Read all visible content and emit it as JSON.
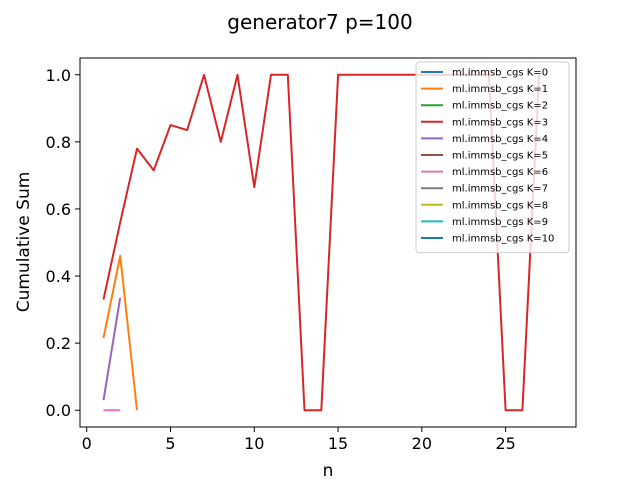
{
  "chart_data": {
    "type": "line",
    "title": "generator7 p=100",
    "xlabel": "n",
    "ylabel": "Cumulative Sum",
    "xlim": [
      -0.4,
      29.2
    ],
    "ylim": [
      -0.05,
      1.05
    ],
    "xticks": [
      0,
      5,
      10,
      15,
      20,
      25
    ],
    "yticks": [
      0.0,
      0.2,
      0.4,
      0.6,
      0.8,
      1.0
    ],
    "xtick_labels": [
      "0",
      "5",
      "10",
      "15",
      "20",
      "25"
    ],
    "ytick_labels": [
      "0.0",
      "0.2",
      "0.4",
      "0.6",
      "0.8",
      "1.0"
    ],
    "grid": false,
    "legend_position": "top-right",
    "series": [
      {
        "name": "ml.immsb_cgs K=0",
        "color": "#1f77b4",
        "x": [],
        "y": []
      },
      {
        "name": "ml.immsb_cgs K=1",
        "color": "#ff7f0e",
        "x": [
          1,
          2,
          3
        ],
        "y": [
          0.215,
          0.46,
          0.0
        ]
      },
      {
        "name": "ml.immsb_cgs K=2",
        "color": "#2ca02c",
        "x": [],
        "y": []
      },
      {
        "name": "ml.immsb_cgs K=3",
        "color": "#d62728",
        "x": [
          1,
          2,
          3,
          4,
          5,
          6,
          7,
          8,
          9,
          10,
          11,
          12,
          13,
          14,
          15,
          16,
          17,
          18,
          19,
          20,
          21,
          22,
          23,
          24,
          25,
          26,
          27
        ],
        "y": [
          0.33,
          0.56,
          0.78,
          0.715,
          0.85,
          0.835,
          1.0,
          0.8,
          1.0,
          0.665,
          1.0,
          1.0,
          0.0,
          0.0,
          1.0,
          1.0,
          1.0,
          1.0,
          1.0,
          1.0,
          1.0,
          1.0,
          1.0,
          1.0,
          0.0,
          0.0,
          1.0
        ]
      },
      {
        "name": "ml.immsb_cgs K=4",
        "color": "#9467bd",
        "x": [
          1,
          2
        ],
        "y": [
          0.03,
          0.335
        ]
      },
      {
        "name": "ml.immsb_cgs K=5",
        "color": "#8c564b",
        "x": [],
        "y": []
      },
      {
        "name": "ml.immsb_cgs K=6",
        "color": "#e377c2",
        "x": [
          1,
          2
        ],
        "y": [
          0.0,
          0.0
        ]
      },
      {
        "name": "ml.immsb_cgs K=7",
        "color": "#7f7f7f",
        "x": [],
        "y": []
      },
      {
        "name": "ml.immsb_cgs K=8",
        "color": "#bcbd22",
        "x": [],
        "y": []
      },
      {
        "name": "ml.immsb_cgs K=9",
        "color": "#17becf",
        "x": [],
        "y": []
      },
      {
        "name": "ml.immsb_cgs K=10",
        "color": "#1f77b4",
        "x": [],
        "y": []
      }
    ]
  }
}
